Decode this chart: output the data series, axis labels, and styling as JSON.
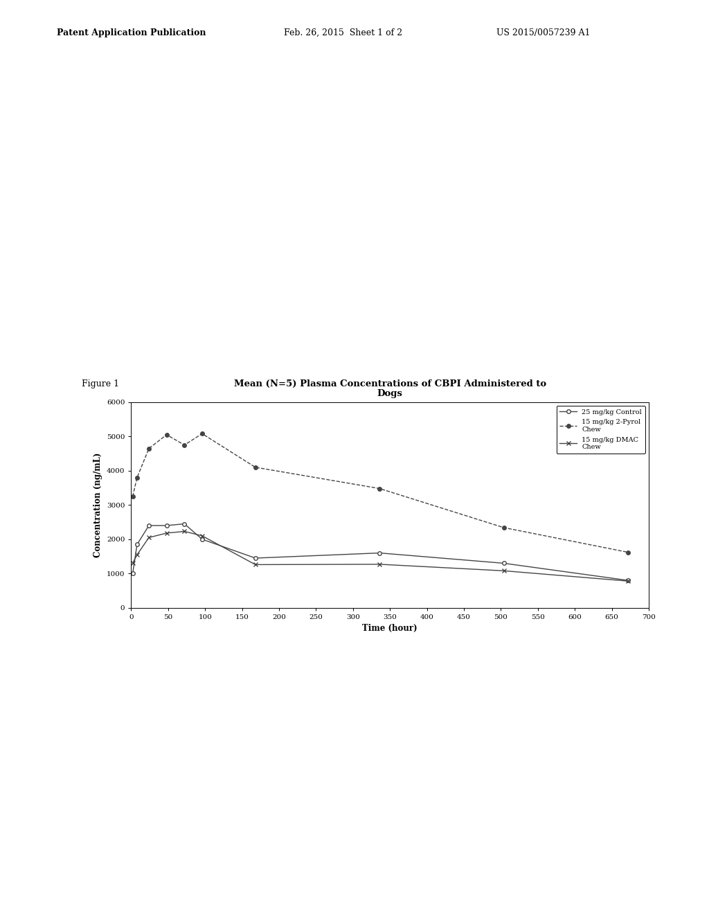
{
  "title": "Mean (N=5) Plasma Concentrations of CBPI Administered to\nDogs",
  "xlabel": "Time (hour)",
  "ylabel": "Concentration (ng/mL)",
  "figure_label": "Figure 1",
  "header_left": "Patent Application Publication",
  "header_mid": "Feb. 26, 2015  Sheet 1 of 2",
  "header_right": "US 2015/0057239 A1",
  "series": [
    {
      "label": "25 mg/kg Control",
      "x": [
        2,
        8,
        24,
        48,
        72,
        96,
        168,
        336,
        504,
        672
      ],
      "y": [
        1000,
        1850,
        2400,
        2400,
        2450,
        2000,
        1450,
        1600,
        1300,
        800
      ],
      "color": "#444444",
      "linestyle": "-",
      "marker": "o",
      "markersize": 4,
      "markerfacecolor": "white",
      "linewidth": 1.0
    },
    {
      "label": "15 mg/kg 2-Pyrol\nChew",
      "x": [
        2,
        8,
        24,
        48,
        72,
        96,
        168,
        336,
        504,
        672
      ],
      "y": [
        3250,
        3800,
        4650,
        5050,
        4750,
        5080,
        4100,
        3480,
        2340,
        1620
      ],
      "color": "#444444",
      "linestyle": "--",
      "marker": "o",
      "markersize": 4,
      "markerfacecolor": "#444444",
      "linewidth": 1.0
    },
    {
      "label": "15 mg/kg DMAC\nChew",
      "x": [
        2,
        8,
        24,
        48,
        72,
        96,
        168,
        336,
        504,
        672
      ],
      "y": [
        1300,
        1550,
        2050,
        2180,
        2230,
        2100,
        1260,
        1270,
        1080,
        780
      ],
      "color": "#444444",
      "linestyle": "-",
      "marker": "x",
      "markersize": 5,
      "markerfacecolor": "#444444",
      "linewidth": 1.0
    }
  ],
  "xlim": [
    0,
    700
  ],
  "ylim": [
    0,
    6000
  ],
  "xticks": [
    0,
    50,
    100,
    150,
    200,
    250,
    300,
    350,
    400,
    450,
    500,
    550,
    600,
    650,
    700
  ],
  "yticks": [
    0,
    1000,
    2000,
    3000,
    4000,
    5000,
    6000
  ],
  "background_color": "#ffffff",
  "title_fontsize": 9.5,
  "axis_label_fontsize": 8.5,
  "tick_fontsize": 7.5,
  "legend_fontsize": 7.0,
  "figure_label_fontsize": 9,
  "header_fontsize": 9
}
